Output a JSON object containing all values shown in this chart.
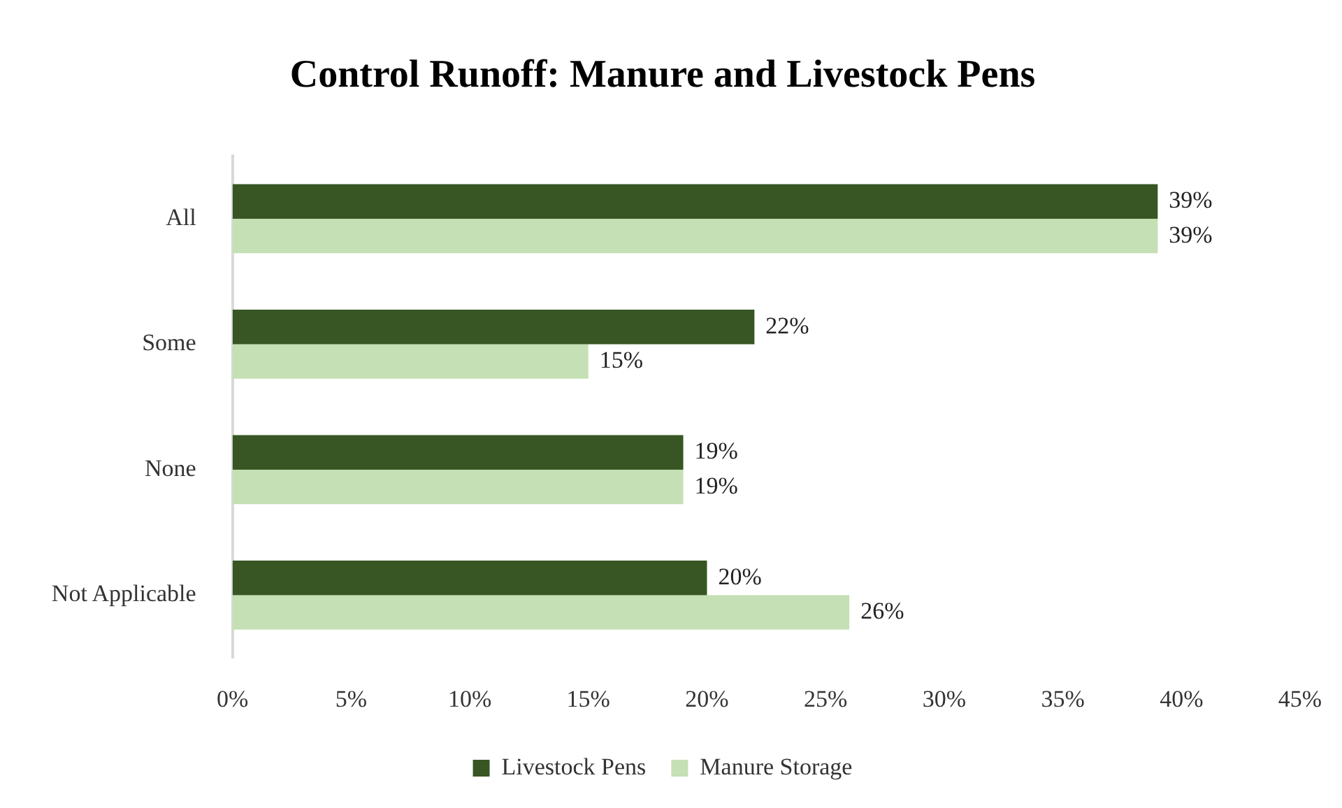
{
  "chart_data": {
    "type": "bar",
    "orientation": "horizontal",
    "title": "Control Runoff: Manure and Livestock Pens",
    "categories": [
      "All",
      "Some",
      "None",
      "Not Applicable"
    ],
    "series": [
      {
        "name": "Livestock Pens",
        "color": "#375623",
        "values": [
          39,
          22,
          19,
          20
        ],
        "value_labels": [
          "39%",
          "22%",
          "19%",
          "20%"
        ]
      },
      {
        "name": "Manure Storage",
        "color": "#c5e0b4",
        "values": [
          39,
          15,
          19,
          26
        ],
        "value_labels": [
          "39%",
          "15%",
          "19%",
          "26%"
        ]
      }
    ],
    "xlim": [
      0,
      45
    ],
    "xticks": [
      {
        "value": 0,
        "label": "0%"
      },
      {
        "value": 5,
        "label": "5%"
      },
      {
        "value": 10,
        "label": "10%"
      },
      {
        "value": 15,
        "label": "15%"
      },
      {
        "value": 20,
        "label": "20%"
      },
      {
        "value": 25,
        "label": "25%"
      },
      {
        "value": 30,
        "label": "30%"
      },
      {
        "value": 35,
        "label": "35%"
      },
      {
        "value": 40,
        "label": "40%"
      },
      {
        "value": 45,
        "label": "45%"
      }
    ],
    "legend": "bottom"
  }
}
